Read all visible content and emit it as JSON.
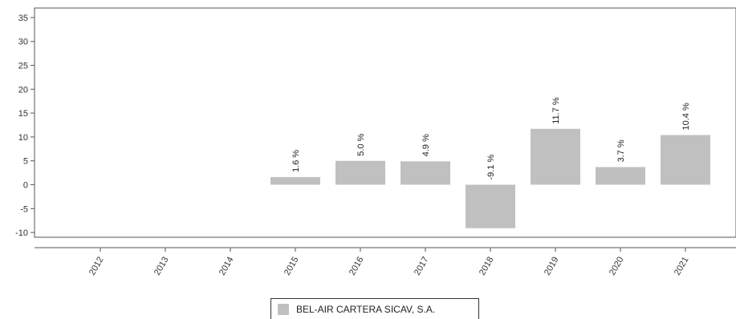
{
  "chart_data": {
    "type": "bar",
    "categories": [
      "2012",
      "2013",
      "2014",
      "2015",
      "2016",
      "2017",
      "2018",
      "2019",
      "2020",
      "2021"
    ],
    "series": [
      {
        "name": "BEL-AIR CARTERA SICAV, S.A.",
        "values": [
          null,
          null,
          null,
          1.6,
          5.0,
          4.9,
          -9.1,
          11.7,
          3.7,
          10.4
        ],
        "labels": [
          "",
          "",
          "",
          "1.6 %",
          "5.0 %",
          "4.9 %",
          "-9.1 %",
          "11.7 %",
          "3.7 %",
          "10.4 %"
        ],
        "color": "#c0c0c0"
      }
    ],
    "yticks": [
      "35",
      "30",
      "25",
      "20",
      "15",
      "10",
      "5",
      "0",
      "-5",
      "-10"
    ],
    "ylim": [
      -11,
      37
    ],
    "grid": false,
    "legend_position": "bottom"
  },
  "legend": {
    "label": "BEL-AIR CARTERA SICAV, S.A."
  }
}
